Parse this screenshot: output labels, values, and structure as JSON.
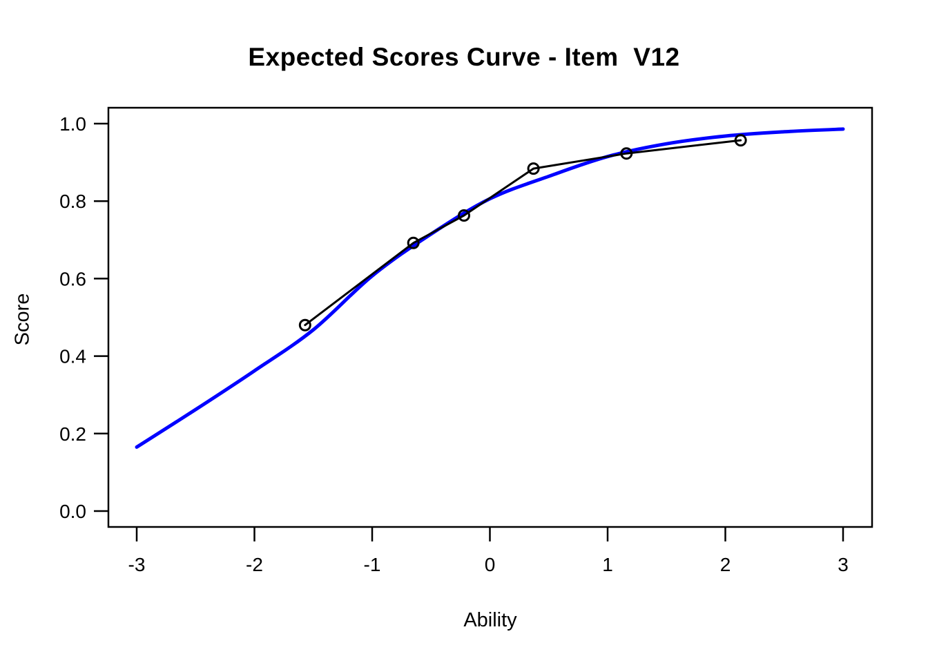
{
  "title": "Expected Scores Curve - Item  V12",
  "chart_data": {
    "type": "line",
    "title": "Expected Scores Curve - Item  V12",
    "xlabel": "Ability",
    "ylabel": "Score",
    "xlim": [
      -3,
      3
    ],
    "ylim": [
      0.0,
      1.0
    ],
    "x_tick_values": [
      -3,
      -2,
      -1,
      0,
      1,
      2,
      3
    ],
    "x_tick_labels": [
      "-3",
      "-2",
      "-1",
      "0",
      "1",
      "2",
      "3"
    ],
    "y_tick_values": [
      0.0,
      0.2,
      0.4,
      0.6,
      0.8,
      1.0
    ],
    "y_tick_labels": [
      "0.0",
      "0.2",
      "0.4",
      "0.6",
      "0.8",
      "1.0"
    ],
    "grid": false,
    "legend": "none",
    "axis_color": "#000000",
    "series": [
      {
        "name": "model-expected-score-curve",
        "style": "smooth-line",
        "color": "#0000FF",
        "line_width": 5,
        "x": [
          -3.0,
          -2.5,
          -2.0,
          -1.5,
          -1.0,
          -0.5,
          0.0,
          0.5,
          1.0,
          1.5,
          2.0,
          2.5,
          3.0
        ],
        "y": [
          0.165,
          0.262,
          0.362,
          0.468,
          0.607,
          0.715,
          0.806,
          0.864,
          0.915,
          0.948,
          0.968,
          0.979,
          0.986
        ]
      },
      {
        "name": "empirical-points-line",
        "style": "line-with-open-circles",
        "color": "#000000",
        "line_width": 3,
        "marker": "open-circle",
        "marker_radius": 7.5,
        "x": [
          -1.57,
          -0.65,
          -0.22,
          0.37,
          1.16,
          2.13
        ],
        "y": [
          0.48,
          0.692,
          0.763,
          0.884,
          0.923,
          0.957
        ]
      }
    ]
  }
}
